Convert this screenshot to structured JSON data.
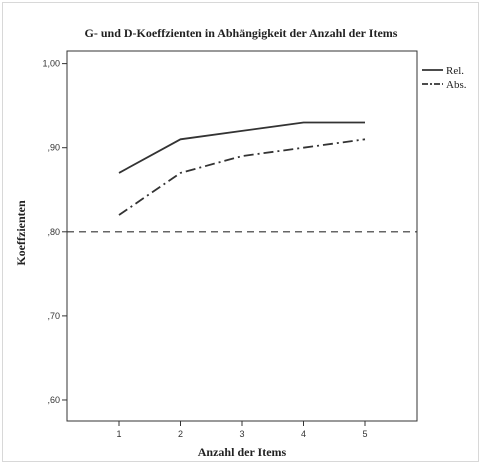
{
  "chart_data": {
    "type": "line",
    "title": "G- und D-Koeffzienten in Abhängigkeit der Anzahl der Items",
    "xlabel": "Anzahl der Items",
    "ylabel": "Koeffzienten",
    "x": [
      1,
      2,
      3,
      4,
      5
    ],
    "x_tick_labels": [
      "1",
      "2",
      "3",
      "4",
      "5"
    ],
    "ylim": [
      0.575,
      1.015
    ],
    "y_ticks": [
      0.6,
      0.7,
      0.8,
      0.9,
      1.0
    ],
    "y_tick_labels": [
      ",60",
      ",70",
      ",80",
      ",90",
      "1,00"
    ],
    "series": [
      {
        "name": "Rel.",
        "values": [
          0.87,
          0.91,
          0.92,
          0.93,
          0.93
        ],
        "line_style": "solid"
      },
      {
        "name": "Abs.",
        "values": [
          0.82,
          0.87,
          0.89,
          0.9,
          0.91
        ],
        "line_style": "dash-dot"
      }
    ],
    "reference_lines": [
      {
        "y": 0.8,
        "line_style": "dashed"
      }
    ],
    "legend_position": "top-right",
    "grid": false,
    "line_color": "#333333"
  }
}
